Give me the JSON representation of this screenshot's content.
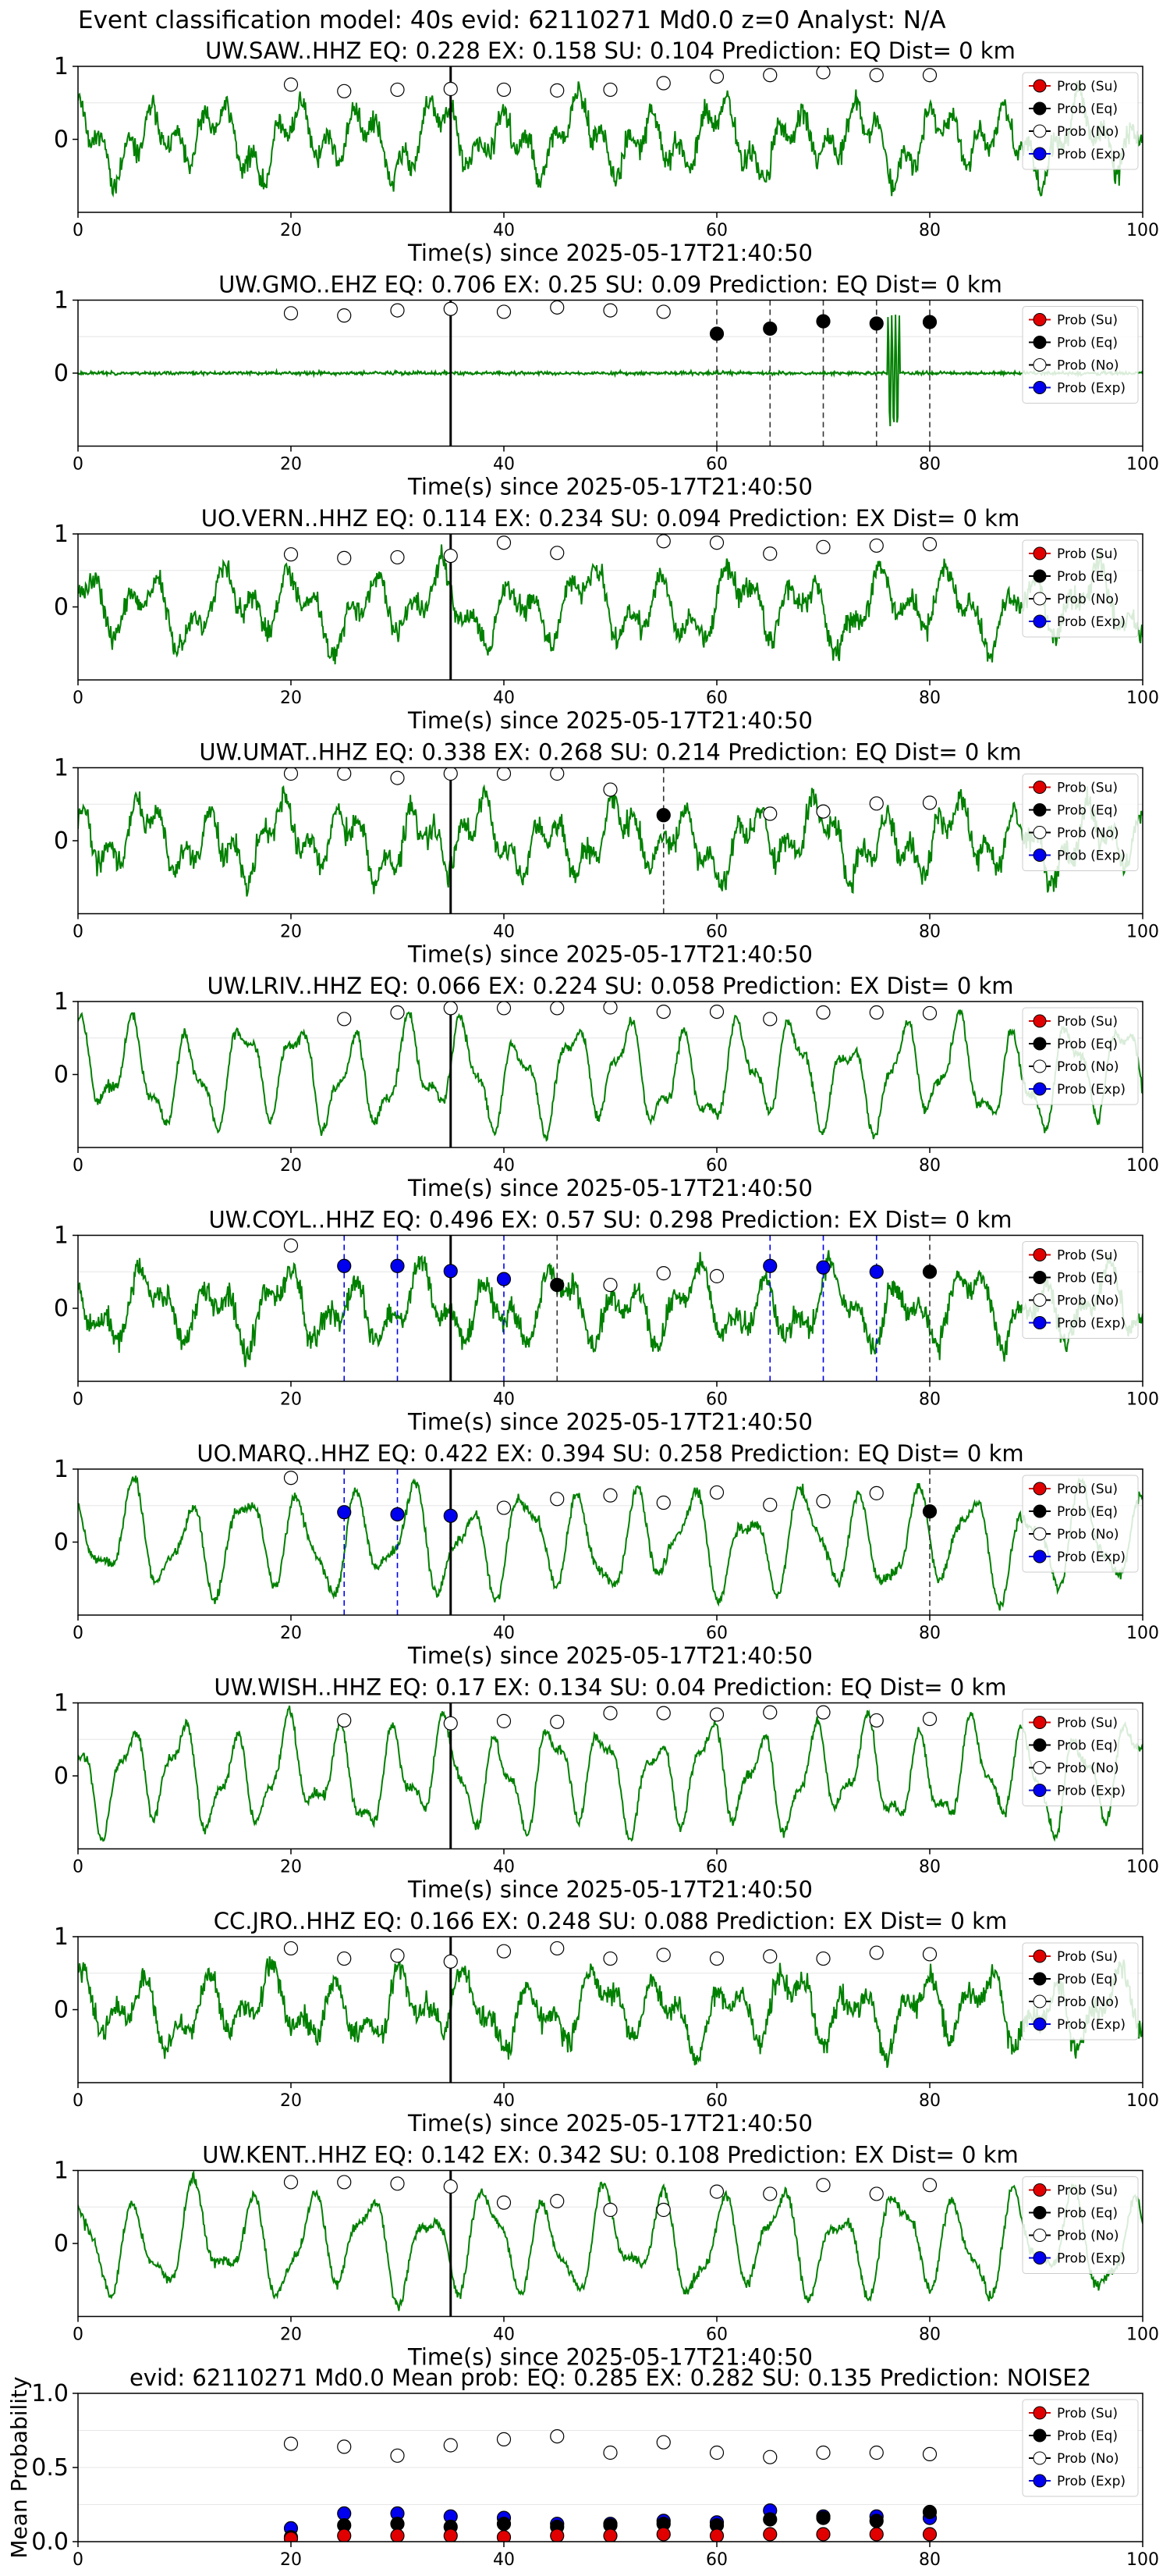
{
  "figure": {
    "title": "Event classification model: 40s evid: 62110271 Md0.0 z=0 Analyst: N/A",
    "panel_xlabel": "Time(s) since 2025-05-17T21:40:50",
    "legend_labels": [
      "Prob (Su)",
      "Prob (Eq)",
      "Prob (No)",
      "Prob (Exp)"
    ],
    "colors": {
      "su": "#e00000",
      "eq": "#000000",
      "no": "#ffffff",
      "exp": "#0000ee",
      "trace": "#008000",
      "pick": "#000000"
    }
  },
  "chart_data": [
    {
      "type": "line",
      "title": "UW.SAW..HHZ   EQ: 0.228  EX: 0.158  SU: 0.104   Prediction: EQ    Dist= 0 km",
      "xlim": [
        0,
        100
      ],
      "ylim": [
        -1,
        1
      ],
      "xticks": [
        "0",
        "20",
        "40",
        "60",
        "80",
        "100"
      ],
      "yticks": [
        "0",
        "1"
      ],
      "pick_time": 35,
      "seed": 11,
      "trace_style": "noisy",
      "legend": "top-right",
      "markers": {
        "su": [],
        "eq": [],
        "exp": [],
        "no": [
          [
            20,
            0.75
          ],
          [
            25,
            0.66
          ],
          [
            30,
            0.68
          ],
          [
            35,
            0.69
          ],
          [
            40,
            0.68
          ],
          [
            45,
            0.67
          ],
          [
            50,
            0.68
          ],
          [
            55,
            0.77
          ],
          [
            60,
            0.86
          ],
          [
            65,
            0.88
          ],
          [
            70,
            0.92
          ],
          [
            75,
            0.88
          ],
          [
            80,
            0.88
          ]
        ]
      },
      "dashes": []
    },
    {
      "type": "line",
      "title": "UW.GMO..EHZ   EQ: 0.706  EX: 0.25  SU: 0.09   Prediction: EQ    Dist= 0 km",
      "xlim": [
        0,
        100
      ],
      "ylim": [
        -1,
        1
      ],
      "xticks": [
        "0",
        "20",
        "40",
        "60",
        "80",
        "100"
      ],
      "yticks": [
        "0",
        "1"
      ],
      "pick_time": 35,
      "seed": 23,
      "trace_style": "flat",
      "legend": "top-right",
      "markers": {
        "su": [],
        "exp": [],
        "eq": [
          [
            60,
            0.54
          ],
          [
            65,
            0.61
          ],
          [
            70,
            0.71
          ],
          [
            75,
            0.68
          ],
          [
            80,
            0.7
          ]
        ],
        "no": [
          [
            20,
            0.82
          ],
          [
            25,
            0.79
          ],
          [
            30,
            0.86
          ],
          [
            35,
            0.88
          ],
          [
            40,
            0.84
          ],
          [
            45,
            0.9
          ],
          [
            50,
            0.86
          ],
          [
            55,
            0.84
          ]
        ]
      },
      "dashes": [
        {
          "x": 60,
          "c": "eq"
        },
        {
          "x": 65,
          "c": "eq"
        },
        {
          "x": 70,
          "c": "eq"
        },
        {
          "x": 75,
          "c": "eq"
        },
        {
          "x": 80,
          "c": "eq"
        }
      ]
    },
    {
      "type": "line",
      "title": "UO.VERN..HHZ   EQ: 0.114  EX: 0.234  SU: 0.094   Prediction: EX    Dist= 0 km",
      "xlim": [
        0,
        100
      ],
      "ylim": [
        -1,
        1
      ],
      "xticks": [
        "0",
        "20",
        "40",
        "60",
        "80",
        "100"
      ],
      "yticks": [
        "0",
        "1"
      ],
      "pick_time": 35,
      "seed": 37,
      "trace_style": "noisy",
      "legend": "top-right",
      "markers": {
        "su": [],
        "eq": [],
        "exp": [],
        "no": [
          [
            20,
            0.72
          ],
          [
            25,
            0.67
          ],
          [
            30,
            0.68
          ],
          [
            35,
            0.7
          ],
          [
            40,
            0.88
          ],
          [
            45,
            0.74
          ],
          [
            55,
            0.9
          ],
          [
            60,
            0.88
          ],
          [
            65,
            0.73
          ],
          [
            70,
            0.82
          ],
          [
            75,
            0.84
          ],
          [
            80,
            0.86
          ]
        ]
      },
      "dashes": []
    },
    {
      "type": "line",
      "title": "UW.UMAT..HHZ   EQ: 0.338  EX: 0.268  SU: 0.214   Prediction: EQ    Dist= 0 km",
      "xlim": [
        0,
        100
      ],
      "ylim": [
        -1,
        1
      ],
      "xticks": [
        "0",
        "20",
        "40",
        "60",
        "80",
        "100"
      ],
      "yticks": [
        "0",
        "1"
      ],
      "pick_time": 35,
      "seed": 41,
      "trace_style": "noisy",
      "legend": "top-right",
      "markers": {
        "su": [],
        "exp": [],
        "eq": [
          [
            55,
            0.35
          ]
        ],
        "no": [
          [
            20,
            0.92
          ],
          [
            25,
            0.92
          ],
          [
            30,
            0.86
          ],
          [
            35,
            0.92
          ],
          [
            40,
            0.92
          ],
          [
            45,
            0.92
          ],
          [
            50,
            0.7
          ],
          [
            65,
            0.37
          ],
          [
            70,
            0.4
          ],
          [
            75,
            0.51
          ],
          [
            80,
            0.52
          ]
        ]
      },
      "dashes": [
        {
          "x": 55,
          "c": "eq"
        }
      ]
    },
    {
      "type": "line",
      "title": "UW.LRIV..HHZ   EQ: 0.066  EX: 0.224  SU: 0.058   Prediction: EX    Dist= 0 km",
      "xlim": [
        0,
        100
      ],
      "ylim": [
        -1,
        1
      ],
      "xticks": [
        "0",
        "20",
        "40",
        "60",
        "80",
        "100"
      ],
      "yticks": [
        "0",
        "1"
      ],
      "pick_time": 35,
      "seed": 53,
      "trace_style": "wave",
      "legend": "top-right",
      "markers": {
        "su": [],
        "eq": [],
        "exp": [],
        "no": [
          [
            25,
            0.76
          ],
          [
            30,
            0.85
          ],
          [
            35,
            0.91
          ],
          [
            40,
            0.91
          ],
          [
            45,
            0.91
          ],
          [
            50,
            0.92
          ],
          [
            55,
            0.86
          ],
          [
            60,
            0.86
          ],
          [
            65,
            0.76
          ],
          [
            70,
            0.85
          ],
          [
            75,
            0.85
          ],
          [
            80,
            0.84
          ]
        ]
      },
      "dashes": []
    },
    {
      "type": "line",
      "title": "UW.COYL..HHZ   EQ: 0.496  EX: 0.57  SU: 0.298   Prediction: EX    Dist= 0 km",
      "xlim": [
        0,
        100
      ],
      "ylim": [
        -1,
        1
      ],
      "xticks": [
        "0",
        "20",
        "40",
        "60",
        "80",
        "100"
      ],
      "yticks": [
        "0",
        "1"
      ],
      "pick_time": 35,
      "seed": 67,
      "trace_style": "noisy",
      "legend": "top-right",
      "markers": {
        "su": [],
        "eq": [
          [
            45,
            0.32
          ],
          [
            80,
            0.5
          ]
        ],
        "exp": [
          [
            25,
            0.58
          ],
          [
            30,
            0.58
          ],
          [
            35,
            0.51
          ],
          [
            40,
            0.4
          ],
          [
            65,
            0.58
          ],
          [
            70,
            0.56
          ],
          [
            75,
            0.5
          ]
        ],
        "no": [
          [
            20,
            0.86
          ],
          [
            50,
            0.32
          ],
          [
            55,
            0.48
          ],
          [
            60,
            0.44
          ]
        ]
      },
      "dashes": [
        {
          "x": 25,
          "c": "exp"
        },
        {
          "x": 30,
          "c": "exp"
        },
        {
          "x": 40,
          "c": "exp"
        },
        {
          "x": 45,
          "c": "eq"
        },
        {
          "x": 65,
          "c": "exp"
        },
        {
          "x": 70,
          "c": "exp"
        },
        {
          "x": 75,
          "c": "exp"
        },
        {
          "x": 80,
          "c": "eq"
        }
      ]
    },
    {
      "type": "line",
      "title": "UO.MARQ..HHZ   EQ: 0.422  EX: 0.394  SU: 0.258   Prediction: EQ    Dist= 0 km",
      "xlim": [
        0,
        100
      ],
      "ylim": [
        -1,
        1
      ],
      "xticks": [
        "0",
        "20",
        "40",
        "60",
        "80",
        "100"
      ],
      "yticks": [
        "0",
        "1"
      ],
      "pick_time": 35,
      "seed": 79,
      "trace_style": "wave",
      "legend": "top-right",
      "markers": {
        "su": [],
        "eq": [
          [
            80,
            0.42
          ]
        ],
        "exp": [
          [
            25,
            0.41
          ],
          [
            30,
            0.38
          ],
          [
            35,
            0.36
          ]
        ],
        "no": [
          [
            20,
            0.88
          ],
          [
            40,
            0.47
          ],
          [
            45,
            0.59
          ],
          [
            50,
            0.64
          ],
          [
            55,
            0.54
          ],
          [
            60,
            0.68
          ],
          [
            65,
            0.51
          ],
          [
            70,
            0.56
          ],
          [
            75,
            0.67
          ]
        ]
      },
      "dashes": [
        {
          "x": 25,
          "c": "exp"
        },
        {
          "x": 30,
          "c": "exp"
        },
        {
          "x": 80,
          "c": "eq"
        }
      ]
    },
    {
      "type": "line",
      "title": "UW.WISH..HHZ   EQ: 0.17  EX: 0.134  SU: 0.04   Prediction: EQ    Dist= 0 km",
      "xlim": [
        0,
        100
      ],
      "ylim": [
        -1,
        1
      ],
      "xticks": [
        "0",
        "20",
        "40",
        "60",
        "80",
        "100"
      ],
      "yticks": [
        "0",
        "1"
      ],
      "pick_time": 35,
      "seed": 83,
      "trace_style": "wave",
      "legend": "top-right",
      "markers": {
        "su": [],
        "eq": [],
        "exp": [],
        "no": [
          [
            25,
            0.76
          ],
          [
            35,
            0.72
          ],
          [
            40,
            0.75
          ],
          [
            45,
            0.74
          ],
          [
            50,
            0.86
          ],
          [
            55,
            0.86
          ],
          [
            60,
            0.84
          ],
          [
            65,
            0.87
          ],
          [
            70,
            0.87
          ],
          [
            75,
            0.76
          ],
          [
            80,
            0.78
          ]
        ]
      },
      "dashes": []
    },
    {
      "type": "line",
      "title": "CC.JRO..HHZ   EQ: 0.166  EX: 0.248  SU: 0.088   Prediction: EX    Dist= 0 km",
      "xlim": [
        0,
        100
      ],
      "ylim": [
        -1,
        1
      ],
      "xticks": [
        "0",
        "20",
        "40",
        "60",
        "80",
        "100"
      ],
      "yticks": [
        "0",
        "1"
      ],
      "pick_time": 35,
      "seed": 97,
      "trace_style": "noisy",
      "legend": "top-right",
      "markers": {
        "su": [],
        "eq": [],
        "exp": [],
        "no": [
          [
            20,
            0.84
          ],
          [
            25,
            0.7
          ],
          [
            30,
            0.74
          ],
          [
            35,
            0.66
          ],
          [
            40,
            0.8
          ],
          [
            45,
            0.84
          ],
          [
            50,
            0.7
          ],
          [
            55,
            0.75
          ],
          [
            60,
            0.7
          ],
          [
            65,
            0.73
          ],
          [
            70,
            0.7
          ],
          [
            75,
            0.78
          ],
          [
            80,
            0.76
          ]
        ]
      },
      "dashes": []
    },
    {
      "type": "line",
      "title": "UW.KENT..HHZ   EQ: 0.142  EX: 0.342  SU: 0.108   Prediction: EX    Dist= 0 km",
      "xlim": [
        0,
        100
      ],
      "ylim": [
        -1,
        1
      ],
      "xticks": [
        "0",
        "20",
        "40",
        "60",
        "80",
        "100"
      ],
      "yticks": [
        "0",
        "1"
      ],
      "pick_time": 35,
      "seed": 103,
      "trace_style": "wave",
      "legend": "top-right",
      "markers": {
        "su": [],
        "eq": [],
        "exp": [],
        "no": [
          [
            20,
            0.84
          ],
          [
            25,
            0.84
          ],
          [
            30,
            0.82
          ],
          [
            35,
            0.78
          ],
          [
            40,
            0.56
          ],
          [
            45,
            0.58
          ],
          [
            50,
            0.46
          ],
          [
            55,
            0.46
          ],
          [
            60,
            0.71
          ],
          [
            65,
            0.68
          ],
          [
            70,
            0.8
          ],
          [
            75,
            0.68
          ],
          [
            80,
            0.8
          ]
        ]
      },
      "dashes": []
    },
    {
      "type": "scatter",
      "title": "evid: 62110271  Md0.0   Mean prob:   EQ: 0.285  EX: 0.282  SU: 0.135   Prediction: NOISE2",
      "ylabel": "Mean Probability",
      "xlim": [
        0,
        100
      ],
      "ylim": [
        0,
        1
      ],
      "xticks": [
        "0",
        "20",
        "40",
        "60",
        "80",
        "100"
      ],
      "yticks": [
        "0.0",
        "0.5",
        "1.0"
      ],
      "legend": "top-right",
      "markers": {
        "no": [
          [
            20,
            0.66
          ],
          [
            25,
            0.64
          ],
          [
            30,
            0.58
          ],
          [
            35,
            0.65
          ],
          [
            40,
            0.69
          ],
          [
            45,
            0.71
          ],
          [
            50,
            0.6
          ],
          [
            55,
            0.67
          ],
          [
            60,
            0.6
          ],
          [
            65,
            0.57
          ],
          [
            70,
            0.6
          ],
          [
            75,
            0.6
          ],
          [
            80,
            0.59
          ]
        ],
        "exp": [
          [
            20,
            0.09
          ],
          [
            25,
            0.19
          ],
          [
            30,
            0.19
          ],
          [
            35,
            0.17
          ],
          [
            40,
            0.16
          ],
          [
            45,
            0.12
          ],
          [
            50,
            0.12
          ],
          [
            55,
            0.14
          ],
          [
            60,
            0.13
          ],
          [
            65,
            0.21
          ],
          [
            70,
            0.17
          ],
          [
            75,
            0.17
          ],
          [
            80,
            0.16
          ]
        ],
        "eq": [
          [
            20,
            0.03
          ],
          [
            25,
            0.11
          ],
          [
            30,
            0.12
          ],
          [
            35,
            0.1
          ],
          [
            40,
            0.12
          ],
          [
            45,
            0.1
          ],
          [
            50,
            0.11
          ],
          [
            55,
            0.12
          ],
          [
            60,
            0.11
          ],
          [
            65,
            0.15
          ],
          [
            70,
            0.16
          ],
          [
            75,
            0.14
          ],
          [
            80,
            0.2
          ]
        ],
        "su": [
          [
            20,
            0.02
          ],
          [
            25,
            0.04
          ],
          [
            30,
            0.04
          ],
          [
            35,
            0.04
          ],
          [
            40,
            0.03
          ],
          [
            45,
            0.04
          ],
          [
            50,
            0.04
          ],
          [
            55,
            0.05
          ],
          [
            60,
            0.04
          ],
          [
            65,
            0.05
          ],
          [
            70,
            0.05
          ],
          [
            75,
            0.05
          ],
          [
            80,
            0.05
          ]
        ]
      }
    }
  ]
}
